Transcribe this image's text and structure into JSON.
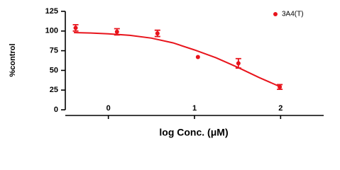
{
  "chart_data": {
    "type": "scatter",
    "x_label": "log Conc. (μM)",
    "y_label": "%control",
    "xlim": [
      -0.5,
      2.5
    ],
    "xticks": [
      0,
      1,
      2
    ],
    "ylim": [
      0,
      125
    ],
    "yticks": [
      0,
      25,
      50,
      75,
      100,
      125
    ],
    "legend": "top-right",
    "series": [
      {
        "name": "3A4(T)",
        "color": "#e8141c",
        "x": [
          -0.38,
          0.1,
          0.57,
          1.04,
          1.51,
          1.99
        ],
        "values": [
          104,
          99,
          97,
          67,
          59,
          29
        ],
        "errors": [
          4,
          4,
          4,
          0,
          6,
          3
        ]
      }
    ],
    "curve": {
      "color": "#e8141c",
      "x": [
        -0.4,
        -0.2,
        0,
        0.25,
        0.5,
        0.75,
        1,
        1.25,
        1.5,
        1.75,
        2
      ],
      "values": [
        98,
        97.5,
        96.5,
        94.5,
        91,
        85,
        76,
        66,
        54,
        41,
        29
      ]
    }
  }
}
